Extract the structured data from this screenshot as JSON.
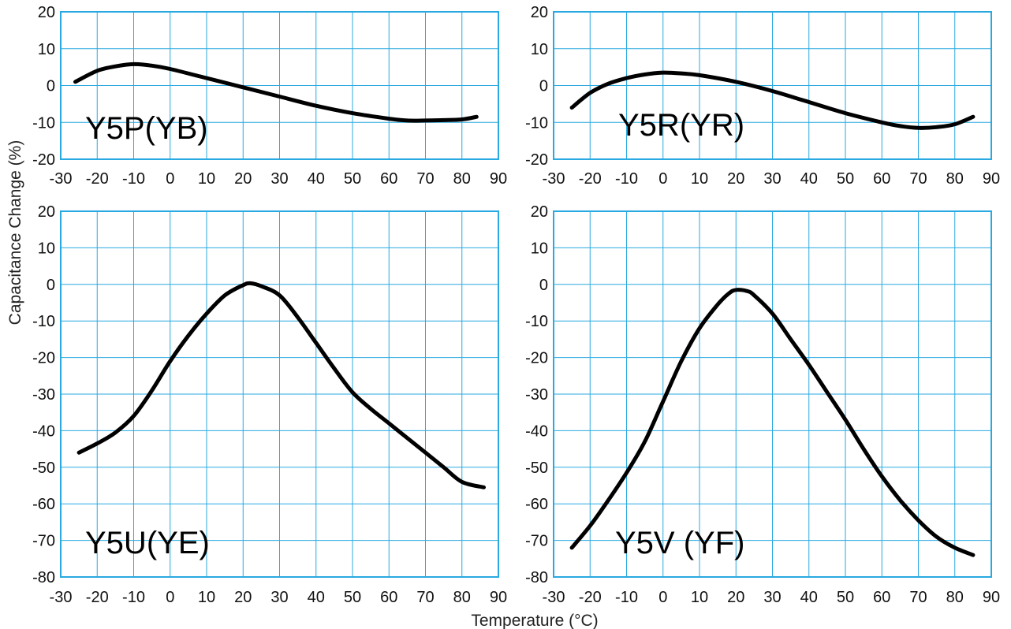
{
  "chart_data": [
    {
      "type": "line",
      "label": "Y5P(YB)",
      "xlim": [
        -30,
        90
      ],
      "ylim": [
        -20,
        20
      ],
      "x_ticks": [
        -30,
        -20,
        -10,
        0,
        10,
        20,
        30,
        40,
        50,
        60,
        70,
        80,
        90
      ],
      "y_ticks": [
        20,
        10,
        0,
        -10,
        -20
      ],
      "grid": true,
      "series": [
        {
          "x": [
            -26,
            -20,
            -15,
            -10,
            -5,
            0,
            10,
            20,
            30,
            40,
            50,
            60,
            65,
            70,
            75,
            80,
            84
          ],
          "y": [
            1,
            4,
            5.2,
            5.8,
            5.4,
            4.5,
            2,
            -0.5,
            -3,
            -5.5,
            -7.5,
            -9,
            -9.5,
            -9.5,
            -9.4,
            -9.2,
            -8.5
          ]
        }
      ]
    },
    {
      "type": "line",
      "label": "Y5R(YR)",
      "xlim": [
        -30,
        90
      ],
      "ylim": [
        -20,
        20
      ],
      "x_ticks": [
        -30,
        -20,
        -10,
        0,
        10,
        20,
        30,
        40,
        50,
        60,
        70,
        80,
        90
      ],
      "y_ticks": [
        20,
        10,
        0,
        -10,
        -20
      ],
      "grid": true,
      "series": [
        {
          "x": [
            -25,
            -20,
            -15,
            -10,
            -5,
            0,
            5,
            10,
            20,
            30,
            40,
            50,
            60,
            65,
            70,
            75,
            80,
            85
          ],
          "y": [
            -6,
            -2,
            0.5,
            2,
            3,
            3.5,
            3.3,
            2.8,
            1,
            -1.5,
            -4.5,
            -7.5,
            -10,
            -11,
            -11.5,
            -11.3,
            -10.5,
            -8.5
          ]
        }
      ]
    },
    {
      "type": "line",
      "label": "Y5U(YE)",
      "xlim": [
        -30,
        90
      ],
      "ylim": [
        -80,
        20
      ],
      "x_ticks": [
        -30,
        -20,
        -10,
        0,
        10,
        20,
        30,
        40,
        50,
        60,
        70,
        80,
        90
      ],
      "y_ticks": [
        20,
        10,
        0,
        -10,
        -20,
        -30,
        -40,
        -50,
        -60,
        -70,
        -80
      ],
      "grid": true,
      "series": [
        {
          "x": [
            -25,
            -20,
            -15,
            -10,
            -5,
            0,
            5,
            10,
            15,
            20,
            22,
            25,
            30,
            35,
            40,
            45,
            50,
            55,
            60,
            65,
            70,
            75,
            80,
            86
          ],
          "y": [
            -46,
            -43.5,
            -40.5,
            -36,
            -29,
            -21,
            -14,
            -8,
            -3,
            -0.2,
            0.3,
            -0.5,
            -3,
            -9,
            -16,
            -23,
            -29.5,
            -34,
            -38,
            -42,
            -46,
            -50,
            -54,
            -55.5
          ]
        }
      ]
    },
    {
      "type": "line",
      "label": "Y5V (YF)",
      "xlim": [
        -30,
        90
      ],
      "ylim": [
        -80,
        20
      ],
      "x_ticks": [
        -30,
        -20,
        -10,
        0,
        10,
        20,
        30,
        40,
        50,
        60,
        70,
        80,
        90
      ],
      "y_ticks": [
        20,
        10,
        0,
        -10,
        -20,
        -30,
        -40,
        -50,
        -60,
        -70,
        -80
      ],
      "grid": true,
      "series": [
        {
          "x": [
            -25,
            -20,
            -15,
            -10,
            -5,
            0,
            5,
            10,
            15,
            18,
            20,
            23,
            25,
            30,
            35,
            40,
            45,
            50,
            55,
            60,
            65,
            70,
            75,
            80,
            85
          ],
          "y": [
            -72,
            -66,
            -59,
            -51.5,
            -43,
            -32,
            -21,
            -12,
            -5.5,
            -2.5,
            -1.5,
            -1.8,
            -3,
            -8,
            -15,
            -22,
            -29.5,
            -37,
            -45,
            -52.5,
            -59,
            -64.5,
            -69,
            -72,
            -74
          ]
        }
      ]
    }
  ],
  "ylabel": "Capacitance Change (%)",
  "xlabel": "Temperature (°C)",
  "colors": {
    "grid": "#29a9e1",
    "curve": "#000000"
  }
}
